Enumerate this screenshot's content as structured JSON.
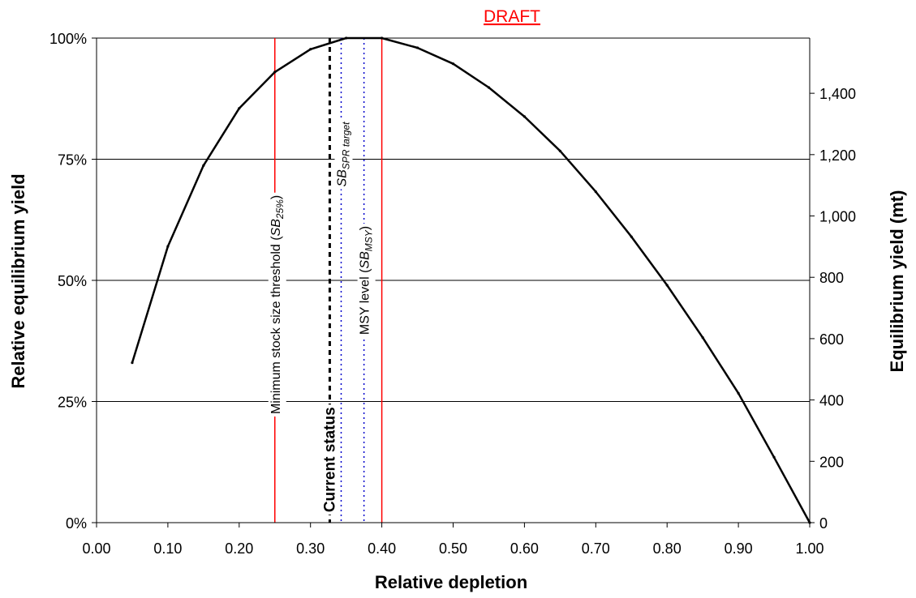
{
  "chart_data": {
    "type": "line",
    "title": "DRAFT",
    "xlabel": "Relative depletion",
    "ylabel": "Relative equilibrium yield",
    "y2label": "Equilibrium yield (mt)",
    "xlim": [
      0,
      1
    ],
    "ylim": [
      0,
      1
    ],
    "y2lim": [
      0,
      1580
    ],
    "grid": true,
    "x_ticks": [
      0,
      0.1,
      0.2,
      0.3,
      0.4,
      0.5,
      0.6,
      0.7,
      0.8,
      0.9,
      1.0
    ],
    "x_tick_labels": [
      "0.00",
      "0.10",
      "0.20",
      "0.30",
      "0.40",
      "0.50",
      "0.60",
      "0.70",
      "0.80",
      "0.90",
      "1.00"
    ],
    "y_ticks": [
      0,
      0.25,
      0.5,
      0.75,
      1.0
    ],
    "y_tick_labels": [
      "0%",
      "25%",
      "50%",
      "75%",
      "100%"
    ],
    "y2_ticks": [
      0,
      200,
      400,
      600,
      800,
      1000,
      1200,
      1400
    ],
    "y2_tick_labels": [
      "0",
      "200",
      "400",
      "600",
      "800",
      "1,000",
      "1,200",
      "1,400"
    ],
    "series": [
      {
        "name": "",
        "x": [
          0.05,
          0.1,
          0.15,
          0.2,
          0.25,
          0.3,
          0.35,
          0.4,
          0.45,
          0.5,
          0.55,
          0.6,
          0.65,
          0.7,
          0.75,
          0.8,
          0.85,
          0.9,
          0.95,
          1.0
        ],
        "y": [
          0.33,
          0.57,
          0.737,
          0.855,
          0.93,
          0.977,
          1.0,
          1.0,
          0.98,
          0.947,
          0.898,
          0.838,
          0.767,
          0.683,
          0.59,
          0.49,
          0.382,
          0.267,
          0.135,
          0.0
        ]
      }
    ],
    "reference_lines": [
      {
        "label_main": "Minimum stock size threshold (",
        "label_sub": "SB",
        "label_subscript": "25%",
        "label_close": ")",
        "x": 0.25,
        "color": "#ff0000",
        "style": "solid",
        "label_y": 0.45
      },
      {
        "label_main": "Current status",
        "x": 0.327,
        "color": "#000000",
        "style": "dashed",
        "bold": true,
        "label_y": 0.13
      },
      {
        "label_main": "",
        "label_sub": "SB",
        "label_subscript": "SPR target",
        "label_close": "",
        "x": 0.343,
        "color": "#0000cc",
        "style": "dotted",
        "label_y": 0.76
      },
      {
        "label_main": "MSY level (",
        "label_sub": "SB",
        "label_subscript": "MSY",
        "label_close": ")",
        "x": 0.375,
        "color": "#0000cc",
        "style": "dotted",
        "label_y": 0.5
      },
      {
        "label_main": "",
        "x": 0.4,
        "color": "#ff0000",
        "style": "solid"
      }
    ]
  }
}
